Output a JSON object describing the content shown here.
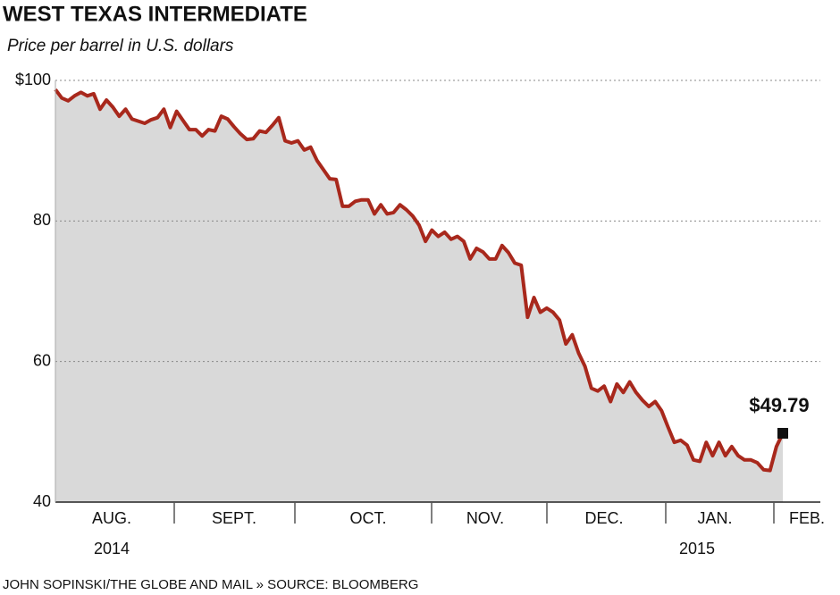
{
  "chart_data": {
    "type": "area_line",
    "title": "WEST TEXAS INTERMEDIATE",
    "subtitle": "Price per barrel in U.S. dollars",
    "months": [
      "AUG.",
      "SEPT.",
      "OCT.",
      "NOV.",
      "DEC.",
      "JAN.",
      "FEB."
    ],
    "years": [
      "2014",
      "2015"
    ],
    "ylim": [
      40,
      100
    ],
    "yticks": [
      {
        "value": 100,
        "label": "$100"
      },
      80,
      60,
      40
    ],
    "grid": true,
    "color": "#a8281c",
    "fill": "#d9d9d9",
    "values": [
      98.7,
      97.5,
      97.1,
      97.8,
      98.3,
      97.8,
      98.1,
      95.9,
      97.2,
      96.2,
      94.9,
      95.9,
      94.5,
      94.2,
      93.9,
      94.4,
      94.7,
      95.9,
      93.3,
      95.6,
      94.3,
      93.0,
      93.0,
      92.1,
      93.0,
      92.8,
      94.9,
      94.5,
      93.4,
      92.4,
      91.6,
      91.7,
      92.8,
      92.6,
      93.6,
      94.7,
      91.4,
      91.1,
      91.4,
      90.1,
      90.5,
      88.6,
      87.3,
      86.0,
      85.9,
      82.1,
      82.1,
      82.8,
      83.0,
      83.0,
      81.0,
      82.3,
      81.0,
      81.2,
      82.3,
      81.6,
      80.7,
      79.4,
      77.1,
      78.7,
      77.8,
      78.4,
      77.4,
      77.8,
      77.1,
      74.6,
      76.1,
      75.6,
      74.6,
      74.6,
      76.5,
      75.5,
      74.0,
      73.7,
      66.3,
      69.1,
      67.0,
      67.6,
      67.0,
      65.9,
      62.5,
      63.8,
      61.2,
      59.3,
      56.2,
      55.8,
      56.5,
      54.3,
      56.8,
      55.6,
      57.1,
      55.6,
      54.5,
      53.6,
      54.3,
      53.0,
      50.7,
      48.5,
      48.8,
      48.1,
      46.0,
      45.8,
      48.5,
      46.6,
      48.5,
      46.6,
      47.9,
      46.6,
      46.0,
      46.0,
      45.6,
      44.6,
      44.5,
      47.9,
      49.79
    ],
    "annotation": "$49.79",
    "footer": "JOHN SOPINSKI/THE GLOBE AND MAIL  »  SOURCE: BLOOMBERG"
  }
}
